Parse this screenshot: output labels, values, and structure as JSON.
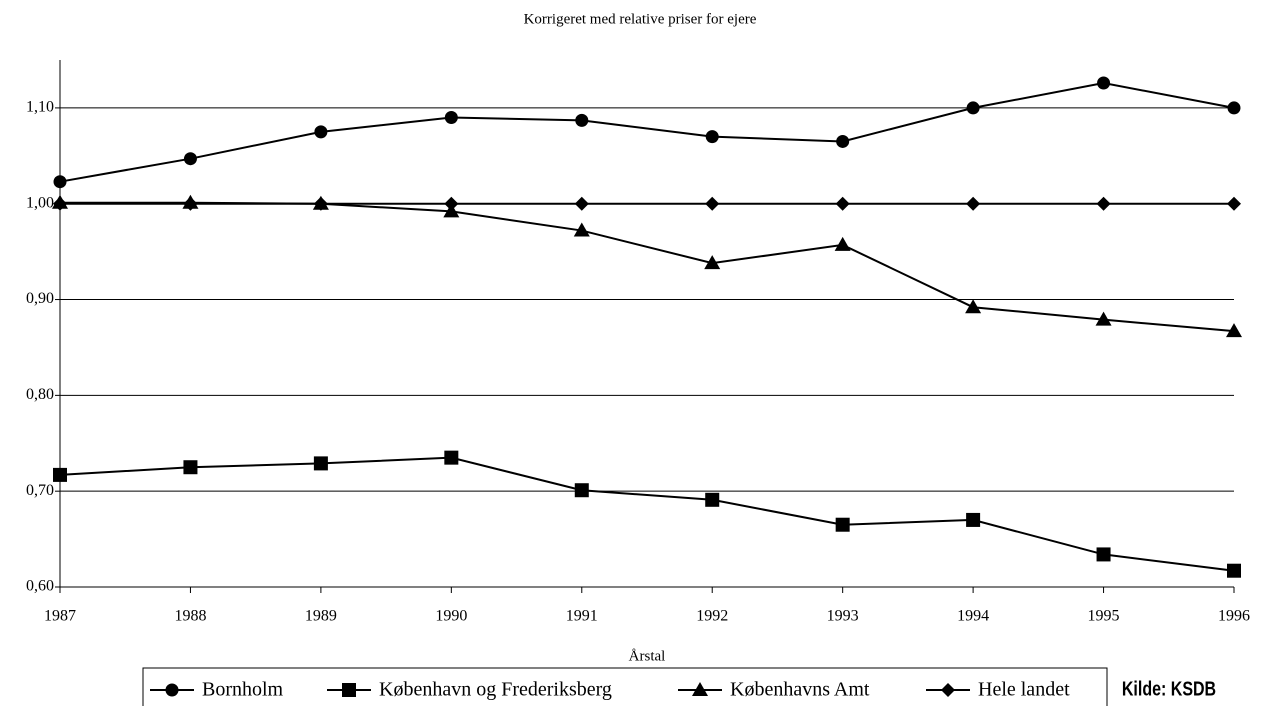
{
  "chart_data": {
    "type": "line",
    "title": "Korrigeret med relative priser for ejere",
    "x_label": "Årstal",
    "source": "Kilde: KSDB",
    "x": [
      1987,
      1988,
      1989,
      1990,
      1991,
      1992,
      1993,
      1994,
      1995,
      1996
    ],
    "xlim": [
      1987,
      1996
    ],
    "xticks": [
      1987,
      1988,
      1989,
      1990,
      1991,
      1992,
      1993,
      1994,
      1995,
      1996
    ],
    "ylim": [
      0.6,
      1.15
    ],
    "yticks": [
      {
        "value": 0.6,
        "label": "0,60"
      },
      {
        "value": 0.7,
        "label": "0,70"
      },
      {
        "value": 0.8,
        "label": "0,80"
      },
      {
        "value": 0.9,
        "label": "0,90"
      },
      {
        "value": 1.0,
        "label": "1,00"
      },
      {
        "value": 1.1,
        "label": "1,10"
      }
    ],
    "grid": true,
    "legend": "bottom",
    "series": [
      {
        "name": "Bornholm",
        "color": "#000000",
        "marker": "circle",
        "values": [
          1.023,
          1.047,
          1.075,
          1.09,
          1.087,
          1.07,
          1.065,
          1.1,
          1.126,
          1.1
        ]
      },
      {
        "name": "København og Frederiksberg",
        "color": "#000000",
        "marker": "square",
        "values": [
          0.717,
          0.725,
          0.729,
          0.735,
          0.701,
          0.691,
          0.665,
          0.67,
          0.634,
          0.617
        ]
      },
      {
        "name": "Københavns Amt",
        "color": "#000000",
        "marker": "triangle",
        "values": [
          1.001,
          1.001,
          1.0,
          0.992,
          0.972,
          0.938,
          0.957,
          0.892,
          0.879,
          0.867
        ]
      },
      {
        "name": "Hele landet",
        "color": "#000000",
        "marker": "diamond",
        "values": [
          1.0,
          1.0,
          1.0,
          1.0,
          1.0,
          1.0,
          1.0,
          1.0,
          1.0,
          1.0
        ]
      }
    ]
  }
}
